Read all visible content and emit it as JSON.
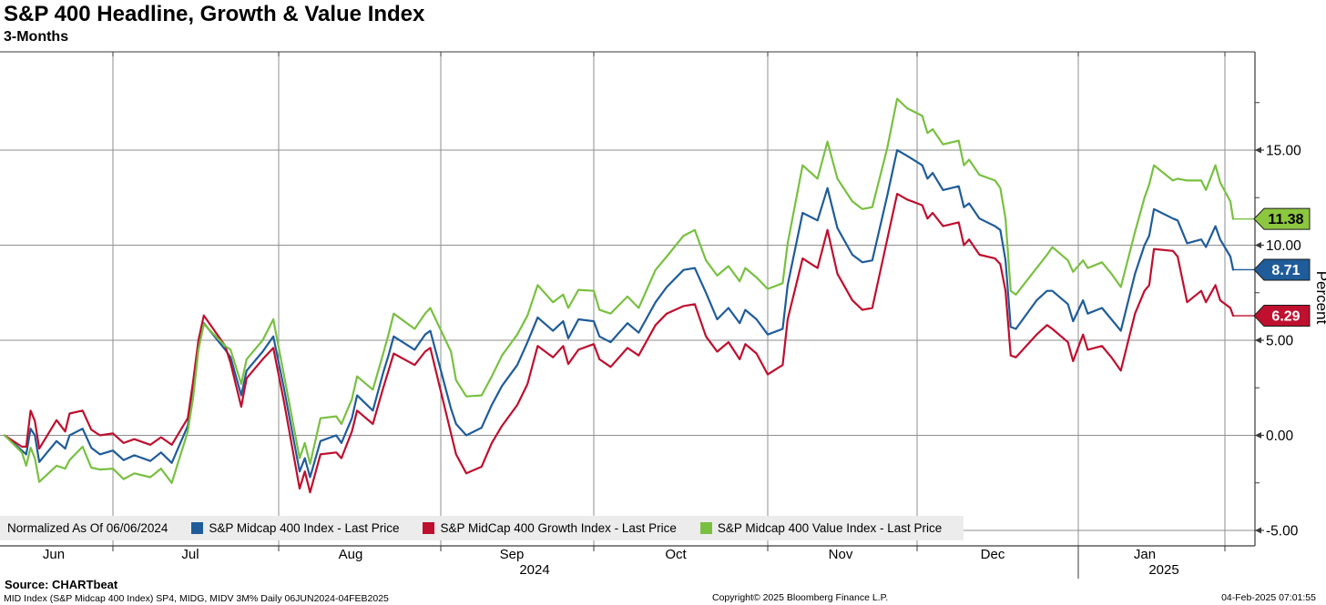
{
  "header": {
    "title": "S&P 400 Headline, Growth & Value Index",
    "subtitle": "3-Months"
  },
  "legend": {
    "note": "Normalized As Of 06/06/2024",
    "items": [
      {
        "label": "S&P Midcap 400 Index - Last Price",
        "color": "#1f5c99",
        "slug": "midcap-400-index"
      },
      {
        "label": "S&P MidCap 400 Growth Index - Last Price",
        "color": "#bf0f2e",
        "slug": "midcap-400-growth-index"
      },
      {
        "label": "S&P Midcap 400 Value Index - Last Price",
        "color": "#79c041",
        "slug": "midcap-400-value-index"
      }
    ]
  },
  "y_axis": {
    "label": "Percent",
    "tick_labels": [
      "15.00",
      "10.00",
      "5.00",
      "0.00",
      "-5.00"
    ]
  },
  "x_axis": {
    "month_labels": [
      "Jun",
      "Jul",
      "Aug",
      "Sep",
      "Oct",
      "Nov",
      "Dec",
      "Jan"
    ],
    "year_labels": [
      "2024",
      "2025"
    ]
  },
  "footer": {
    "source": "Source: CHARTbeat",
    "description": "MID Index (S&P Midcap 400 Index) SP4, MIDG, MIDV 3M%  Daily 06JUN2024-04FEB2025",
    "copyright": "Copyright© 2025 Bloomberg Finance L.P.",
    "timestamp": "04-Feb-2025 07:01:55"
  },
  "colors": {
    "headline_blue": "#1f5c99",
    "growth_red": "#bf0f2e",
    "value_green": "#79c041",
    "badge_green": "#8dc63f",
    "grid": "#8f8f8f",
    "frame": "#3a3a3a",
    "legend_bg": "#ececec"
  },
  "chart_data": {
    "type": "line",
    "title": "S&P 400 Headline, Growth & Value Index",
    "subtitle": "3-Months",
    "ylabel": "Percent",
    "ylim": [
      -5.8,
      20.2
    ],
    "yticks": [
      15,
      10,
      5,
      0,
      -5
    ],
    "minor_yticks": [
      17.5,
      12.5,
      7.5,
      2.5,
      -2.5
    ],
    "grid": true,
    "legend_position": "bottom",
    "normalized_as_of": "06/06/2024",
    "x_range": [
      "2024-06-06",
      "2025-02-04"
    ],
    "dates": [
      "2024-06-06",
      "2024-06-10",
      "2024-06-11",
      "2024-06-12",
      "2024-06-13",
      "2024-06-14",
      "2024-06-18",
      "2024-06-20",
      "2024-06-21",
      "2024-06-24",
      "2024-06-26",
      "2024-06-28",
      "2024-07-01",
      "2024-07-03",
      "2024-07-05",
      "2024-07-08",
      "2024-07-10",
      "2024-07-12",
      "2024-07-15",
      "2024-07-16",
      "2024-07-17",
      "2024-07-18",
      "2024-07-22",
      "2024-07-23",
      "2024-07-25",
      "2024-07-26",
      "2024-07-29",
      "2024-07-31",
      "2024-08-02",
      "2024-08-05",
      "2024-08-06",
      "2024-08-07",
      "2024-08-09",
      "2024-08-12",
      "2024-08-13",
      "2024-08-15",
      "2024-08-16",
      "2024-08-19",
      "2024-08-21",
      "2024-08-22",
      "2024-08-23",
      "2024-08-27",
      "2024-08-29",
      "2024-08-30",
      "2024-09-03",
      "2024-09-04",
      "2024-09-06",
      "2024-09-09",
      "2024-09-11",
      "2024-09-13",
      "2024-09-16",
      "2024-09-18",
      "2024-09-20",
      "2024-09-23",
      "2024-09-25",
      "2024-09-26",
      "2024-09-28",
      "2024-10-01",
      "2024-10-02",
      "2024-10-04",
      "2024-10-07",
      "2024-10-09",
      "2024-10-12",
      "2024-10-14",
      "2024-10-17",
      "2024-10-19",
      "2024-10-21",
      "2024-10-23",
      "2024-10-25",
      "2024-10-27",
      "2024-10-28",
      "2024-10-30",
      "2024-11-01",
      "2024-11-04",
      "2024-11-05",
      "2024-11-08",
      "2024-11-11",
      "2024-11-13",
      "2024-11-15",
      "2024-11-18",
      "2024-11-20",
      "2024-11-22",
      "2024-11-25",
      "2024-11-27",
      "2024-11-29",
      "2024-12-02",
      "2024-12-03",
      "2024-12-04",
      "2024-12-06",
      "2024-12-09",
      "2024-12-10",
      "2024-12-11",
      "2024-12-13",
      "2024-12-16",
      "2024-12-17",
      "2024-12-18",
      "2024-12-19",
      "2024-12-20",
      "2024-12-24",
      "2024-12-26",
      "2024-12-27",
      "2024-12-30",
      "2024-12-31",
      "2025-01-02",
      "2025-01-03",
      "2025-01-06",
      "2025-01-08",
      "2025-01-10",
      "2025-01-13",
      "2025-01-15",
      "2025-01-16",
      "2025-01-17",
      "2025-01-21",
      "2025-01-22",
      "2025-01-24",
      "2025-01-27",
      "2025-01-28",
      "2025-01-30",
      "2025-01-31",
      "2025-02-03",
      "2025-02-04"
    ],
    "series": [
      {
        "name": "S&P Midcap 400 Index - Last Price",
        "slug": "midcap-400-index",
        "color": "#1f5c99",
        "last": 8.71,
        "badge": {
          "text": "8.71",
          "fill": "#1f5c99",
          "text_color": "#ffffff"
        },
        "values": [
          0.0,
          -0.8,
          -1.0,
          0.35,
          0.0,
          -1.4,
          -0.3,
          -0.7,
          0.0,
          0.35,
          -0.65,
          -1.0,
          -0.8,
          -1.3,
          -1.05,
          -1.35,
          -0.9,
          -1.45,
          0.5,
          2.4,
          4.6,
          5.9,
          4.5,
          4.1,
          2.1,
          3.4,
          4.4,
          5.2,
          2.5,
          -1.9,
          -1.2,
          -2.2,
          -0.3,
          0.0,
          -0.4,
          0.9,
          2.1,
          1.3,
          3.3,
          4.2,
          5.2,
          4.5,
          5.3,
          5.5,
          1.4,
          0.6,
          0.0,
          0.4,
          1.6,
          2.6,
          3.7,
          4.9,
          6.2,
          5.5,
          6.0,
          5.1,
          6.1,
          6.0,
          5.2,
          4.9,
          5.9,
          5.4,
          7.0,
          7.8,
          8.7,
          8.8,
          7.5,
          6.1,
          6.7,
          5.9,
          6.6,
          6.1,
          5.3,
          5.6,
          7.9,
          11.7,
          11.3,
          13.0,
          10.9,
          9.5,
          9.1,
          9.2,
          12.6,
          15.0,
          14.7,
          14.2,
          13.5,
          13.8,
          12.9,
          13.1,
          12.0,
          12.2,
          11.4,
          11.0,
          10.8,
          9.2,
          5.7,
          5.6,
          7.1,
          7.6,
          7.6,
          6.9,
          6.0,
          7.1,
          6.4,
          6.7,
          6.1,
          5.5,
          8.5,
          10.0,
          10.5,
          11.9,
          11.4,
          11.3,
          10.1,
          10.3,
          9.9,
          11.0,
          10.3,
          9.4,
          8.71
        ]
      },
      {
        "name": "S&P MidCap 400 Growth Index - Last Price",
        "slug": "midcap-400-growth-index",
        "color": "#bf0f2e",
        "last": 6.29,
        "badge": {
          "text": "6.29",
          "fill": "#c0102f",
          "text_color": "#ffffff"
        },
        "values": [
          0.0,
          -0.6,
          -0.6,
          1.3,
          0.75,
          -0.7,
          0.8,
          0.2,
          1.15,
          1.3,
          0.3,
          0.0,
          0.1,
          -0.4,
          -0.2,
          -0.5,
          -0.1,
          -0.5,
          0.9,
          2.85,
          5.0,
          6.3,
          4.7,
          3.8,
          1.5,
          3.0,
          4.0,
          4.6,
          1.8,
          -2.8,
          -1.9,
          -3.0,
          -1.0,
          -0.9,
          -1.2,
          0.2,
          1.3,
          0.6,
          2.5,
          3.4,
          4.3,
          3.7,
          4.4,
          4.6,
          0.1,
          -1.0,
          -2.0,
          -1.65,
          -0.4,
          0.5,
          1.6,
          2.7,
          4.7,
          4.1,
          4.7,
          3.75,
          4.5,
          4.8,
          4.0,
          3.6,
          4.6,
          4.2,
          5.8,
          6.4,
          6.8,
          6.9,
          5.2,
          4.4,
          4.9,
          4.0,
          4.8,
          4.3,
          3.2,
          3.7,
          6.1,
          9.3,
          8.8,
          10.8,
          8.5,
          7.1,
          6.6,
          6.7,
          10.3,
          12.7,
          12.4,
          12.1,
          11.4,
          11.7,
          11.0,
          11.2,
          10.0,
          10.3,
          9.5,
          9.3,
          9.0,
          7.6,
          4.2,
          4.1,
          5.3,
          5.8,
          5.6,
          4.9,
          3.9,
          5.3,
          4.5,
          4.7,
          4.1,
          3.4,
          6.4,
          7.6,
          7.9,
          9.8,
          9.7,
          9.4,
          7.0,
          7.6,
          7.0,
          7.9,
          7.1,
          6.7,
          6.29
        ]
      },
      {
        "name": "S&P Midcap 400 Value Index - Last Price",
        "slug": "midcap-400-value-index",
        "color": "#79c041",
        "last": 11.38,
        "badge": {
          "text": "11.38",
          "fill": "#8dc63f",
          "text_color": "#000000"
        },
        "values": [
          0.0,
          -0.9,
          -1.6,
          -0.65,
          -1.2,
          -2.45,
          -1.6,
          -1.75,
          -1.3,
          -0.6,
          -1.7,
          -1.8,
          -1.75,
          -2.3,
          -2.0,
          -2.2,
          -1.75,
          -2.5,
          0.2,
          2.0,
          4.5,
          5.85,
          4.7,
          4.5,
          2.7,
          4.0,
          5.0,
          6.1,
          3.2,
          -1.2,
          -0.4,
          -1.5,
          0.9,
          1.0,
          0.6,
          1.9,
          3.1,
          2.4,
          4.3,
          5.3,
          6.4,
          5.6,
          6.4,
          6.7,
          4.4,
          2.9,
          2.05,
          2.1,
          3.1,
          4.2,
          5.3,
          6.3,
          7.9,
          7.0,
          7.4,
          6.7,
          7.65,
          7.6,
          6.6,
          6.4,
          7.3,
          6.7,
          8.7,
          9.4,
          10.5,
          10.8,
          9.2,
          8.4,
          8.9,
          8.1,
          8.8,
          8.3,
          7.7,
          8.0,
          10.1,
          14.2,
          13.5,
          15.45,
          13.5,
          12.3,
          11.9,
          12.0,
          15.1,
          17.7,
          17.2,
          16.8,
          15.9,
          16.1,
          15.3,
          15.5,
          14.2,
          14.5,
          13.7,
          13.4,
          13.0,
          11.4,
          7.6,
          7.4,
          8.8,
          9.5,
          9.9,
          9.2,
          8.6,
          9.2,
          8.8,
          9.1,
          8.5,
          7.8,
          10.7,
          12.5,
          13.2,
          14.2,
          13.4,
          13.5,
          13.4,
          13.4,
          12.9,
          14.2,
          13.3,
          12.3,
          11.38
        ]
      }
    ]
  }
}
